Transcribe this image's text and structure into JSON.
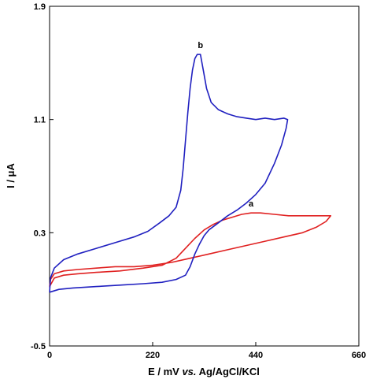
{
  "chart_data": {
    "type": "line",
    "xlabel": {
      "prefix": "E / mV ",
      "italic": "vs.",
      "suffix": " Ag/AgCl/KCl"
    },
    "ylabel": "I / μA",
    "xlim": [
      0,
      660
    ],
    "ylim": [
      -0.5,
      1.9
    ],
    "x_ticks": [
      0,
      220,
      440,
      660
    ],
    "y_ticks": [
      -0.5,
      0.3,
      1.1,
      1.9
    ],
    "grid": false,
    "series": [
      {
        "name": "a",
        "color": "#e02020",
        "points": [
          [
            0,
            -0.08
          ],
          [
            10,
            -0.02
          ],
          [
            30,
            0.0
          ],
          [
            60,
            0.01
          ],
          [
            100,
            0.02
          ],
          [
            150,
            0.03
          ],
          [
            200,
            0.05
          ],
          [
            240,
            0.07
          ],
          [
            270,
            0.12
          ],
          [
            290,
            0.19
          ],
          [
            310,
            0.26
          ],
          [
            330,
            0.32
          ],
          [
            350,
            0.36
          ],
          [
            370,
            0.39
          ],
          [
            390,
            0.41
          ],
          [
            410,
            0.43
          ],
          [
            430,
            0.44
          ],
          [
            450,
            0.44
          ],
          [
            480,
            0.43
          ],
          [
            510,
            0.42
          ],
          [
            540,
            0.42
          ],
          [
            570,
            0.42
          ],
          [
            590,
            0.42
          ],
          [
            600,
            0.42
          ],
          [
            590,
            0.38
          ],
          [
            570,
            0.34
          ],
          [
            540,
            0.3
          ],
          [
            500,
            0.27
          ],
          [
            460,
            0.24
          ],
          [
            420,
            0.21
          ],
          [
            380,
            0.18
          ],
          [
            340,
            0.15
          ],
          [
            300,
            0.12
          ],
          [
            260,
            0.09
          ],
          [
            220,
            0.07
          ],
          [
            180,
            0.06
          ],
          [
            140,
            0.06
          ],
          [
            100,
            0.05
          ],
          [
            60,
            0.04
          ],
          [
            30,
            0.03
          ],
          [
            10,
            0.01
          ],
          [
            2,
            -0.03
          ],
          [
            0,
            -0.08
          ]
        ]
      },
      {
        "name": "b",
        "color": "#2020c0",
        "points": [
          [
            0,
            -0.12
          ],
          [
            20,
            -0.1
          ],
          [
            50,
            -0.09
          ],
          [
            100,
            -0.08
          ],
          [
            150,
            -0.07
          ],
          [
            200,
            -0.06
          ],
          [
            240,
            -0.05
          ],
          [
            270,
            -0.03
          ],
          [
            290,
            0.0
          ],
          [
            300,
            0.06
          ],
          [
            310,
            0.15
          ],
          [
            320,
            0.22
          ],
          [
            330,
            0.28
          ],
          [
            340,
            0.32
          ],
          [
            360,
            0.37
          ],
          [
            380,
            0.42
          ],
          [
            400,
            0.46
          ],
          [
            420,
            0.51
          ],
          [
            440,
            0.57
          ],
          [
            460,
            0.65
          ],
          [
            480,
            0.79
          ],
          [
            495,
            0.92
          ],
          [
            505,
            1.04
          ],
          [
            508,
            1.1
          ],
          [
            500,
            1.11
          ],
          [
            480,
            1.1
          ],
          [
            460,
            1.11
          ],
          [
            440,
            1.1
          ],
          [
            420,
            1.11
          ],
          [
            400,
            1.12
          ],
          [
            380,
            1.14
          ],
          [
            360,
            1.17
          ],
          [
            345,
            1.22
          ],
          [
            335,
            1.32
          ],
          [
            328,
            1.45
          ],
          [
            322,
            1.56
          ],
          [
            315,
            1.56
          ],
          [
            310,
            1.53
          ],
          [
            305,
            1.45
          ],
          [
            300,
            1.32
          ],
          [
            295,
            1.15
          ],
          [
            290,
            0.95
          ],
          [
            285,
            0.75
          ],
          [
            280,
            0.6
          ],
          [
            270,
            0.48
          ],
          [
            255,
            0.42
          ],
          [
            235,
            0.37
          ],
          [
            210,
            0.31
          ],
          [
            180,
            0.27
          ],
          [
            140,
            0.23
          ],
          [
            100,
            0.19
          ],
          [
            60,
            0.15
          ],
          [
            30,
            0.11
          ],
          [
            10,
            0.05
          ],
          [
            2,
            -0.02
          ],
          [
            0,
            -0.12
          ]
        ]
      }
    ]
  }
}
